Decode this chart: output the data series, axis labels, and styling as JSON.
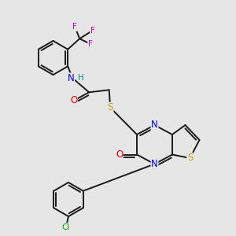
{
  "background_color": "#e6e6e6",
  "bond_color": "#1a1a1a",
  "atom_colors": {
    "N": "#0000ee",
    "O": "#ee0000",
    "S_thio": "#bbaa00",
    "S_link": "#bbaa00",
    "F": "#cc00cc",
    "Cl": "#00aa00",
    "H": "#008888",
    "C": "#1a1a1a"
  },
  "font_size_atom": 8.5,
  "lw": 1.4
}
